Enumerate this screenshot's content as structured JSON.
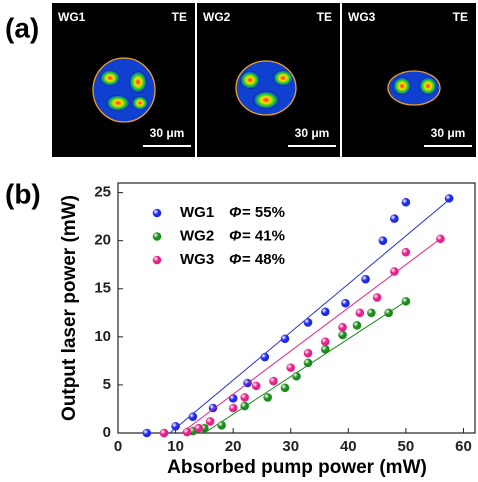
{
  "panel_a": {
    "label": "(a)",
    "images": [
      {
        "name": "WG1",
        "mode": "TE",
        "scale_bar": "30 μm"
      },
      {
        "name": "WG2",
        "mode": "TE",
        "scale_bar": "30 μm"
      },
      {
        "name": "WG3",
        "mode": "TE",
        "scale_bar": "30 μm"
      }
    ]
  },
  "chart_data": {
    "type": "scatter",
    "panel_label": "(b)",
    "x_label": "Absorbed pump power (mW)",
    "y_label": "Output laser power (mW)",
    "xlim": [
      0,
      62
    ],
    "ylim": [
      0,
      26
    ],
    "xticks": [
      0,
      10,
      20,
      30,
      40,
      50,
      60
    ],
    "yticks": [
      0,
      5,
      10,
      15,
      20,
      25
    ],
    "legend": "upper left",
    "series": [
      {
        "name": "WG1",
        "efficiency_symbol": "Φ",
        "efficiency": "= 55%",
        "color": "#1f2be8",
        "x": [
          5,
          10,
          13,
          16.5,
          20,
          22.5,
          25.5,
          29,
          33,
          36,
          39.5,
          43,
          46,
          48,
          50,
          57.5
        ],
        "values": [
          0,
          0.7,
          1.7,
          2.6,
          3.6,
          5.2,
          7.9,
          9.8,
          11.5,
          12.6,
          13.5,
          16,
          20,
          22.3,
          24,
          24.4
        ],
        "fit_x": [
          9,
          58
        ],
        "fit_y": [
          0,
          24.5
        ]
      },
      {
        "name": "WG2",
        "efficiency_symbol": "Φ",
        "efficiency": "= 41%",
        "color": "#1b8c1b",
        "x": [
          8,
          13,
          15,
          18,
          22,
          26,
          29,
          31,
          33,
          36,
          39,
          41.5,
          44,
          47,
          50
        ],
        "values": [
          0,
          0.2,
          0.5,
          0.8,
          2.8,
          3.7,
          4.7,
          5.9,
          7.3,
          8.7,
          10.2,
          11.2,
          12.5,
          12.5,
          13.7
        ],
        "fit_x": [
          15,
          50
        ],
        "fit_y": [
          0,
          13.7
        ]
      },
      {
        "name": "WG3",
        "efficiency_symbol": "Φ",
        "efficiency": "= 48%",
        "color": "#e8208a",
        "x": [
          8,
          12,
          14,
          16,
          20,
          22,
          24,
          27,
          30,
          33,
          36,
          39,
          42,
          45,
          48,
          50,
          56
        ],
        "values": [
          0,
          0.1,
          0.5,
          1.2,
          2.6,
          3.7,
          4.9,
          5.4,
          6.8,
          8.3,
          9.5,
          11,
          12.5,
          14.1,
          16.8,
          18.8,
          20.2
        ],
        "fit_x": [
          11,
          56
        ],
        "fit_y": [
          0,
          20.2
        ]
      }
    ]
  }
}
